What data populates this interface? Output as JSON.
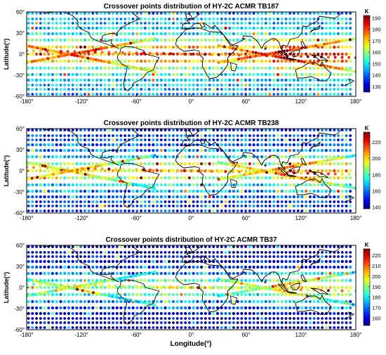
{
  "figure": {
    "xlabel": "Longitude(°)",
    "ylabel": "Latitude(°)",
    "x_ticks": [
      "-180°",
      "-120°",
      "-60°",
      "0°",
      "60°",
      "120°",
      "180°"
    ],
    "y_ticks": [
      "60°",
      "30°",
      "0°",
      "-30°",
      "-60°"
    ],
    "colorbar_unit": "K"
  },
  "panels": [
    {
      "title": "Crossover points distribution of HY-2C ACMR TB187",
      "colorbar_ticks": [
        "190",
        "180",
        "170",
        "160",
        "150",
        "140",
        "130"
      ],
      "range": [
        125,
        192
      ]
    },
    {
      "title": "Crossover points distribution of HY-2C ACMR TB238",
      "colorbar_ticks": [
        "220",
        "200",
        "180",
        "160",
        "140"
      ],
      "range": [
        138,
        232
      ]
    },
    {
      "title": "Crossover points distribution of HY-2C ACMR TB37",
      "colorbar_ticks": [
        "220",
        "210",
        "200",
        "190",
        "180",
        "170",
        "160"
      ],
      "range": [
        153,
        226
      ]
    }
  ],
  "chart_data": {
    "type": "scatter",
    "x_range": [
      -180,
      180
    ],
    "y_range": [
      -60,
      60
    ],
    "colormap": "jet",
    "track_latitudes": [
      58,
      50,
      44,
      37,
      29,
      20,
      10,
      0,
      -10,
      -20,
      -29,
      -37,
      -44,
      -50,
      -57
    ],
    "colors": {
      "coastline": "#000000",
      "frame": "#000000",
      "background": "#ffffff"
    }
  }
}
